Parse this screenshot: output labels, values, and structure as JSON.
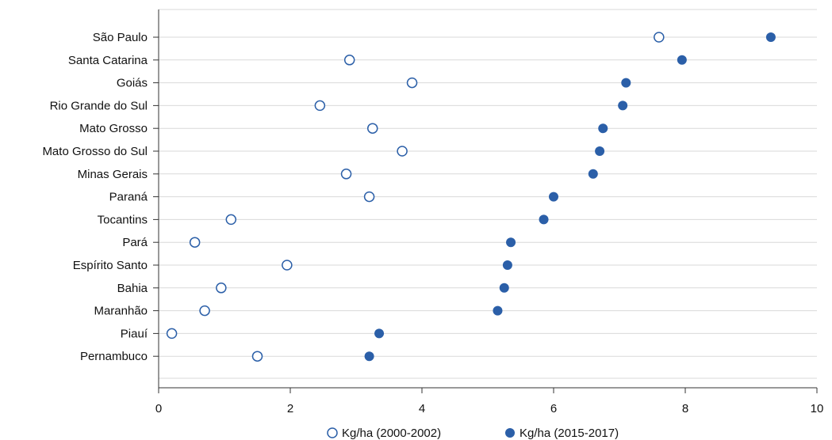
{
  "chart_data": {
    "type": "scatter",
    "title": "",
    "xlabel": "",
    "ylabel": "",
    "xlim": [
      0,
      10
    ],
    "x_ticks": [
      0,
      2,
      4,
      6,
      8,
      10
    ],
    "grid": "horizontal",
    "legend_position": "bottom",
    "categories": [
      "São Paulo",
      "Santa Catarina",
      "Goiás",
      "Rio Grande do Sul",
      "Mato Grosso",
      "Mato Grosso do Sul",
      "Minas Gerais",
      "Paraná",
      "Tocantins",
      "Pará",
      "Espírito Santo",
      "Bahia",
      "Maranhão",
      "Piauí",
      "Pernambuco"
    ],
    "series": [
      {
        "name": "Kg/ha (2000-2002)",
        "marker": "open-circle",
        "color": "#2b5fa8",
        "values": [
          7.6,
          2.9,
          3.85,
          2.45,
          3.25,
          3.7,
          2.85,
          3.2,
          1.1,
          0.55,
          1.95,
          0.95,
          0.7,
          0.2,
          1.5
        ]
      },
      {
        "name": "Kg/ha (2015-2017)",
        "marker": "filled-circle",
        "color": "#2b5fa8",
        "values": [
          9.3,
          7.95,
          7.1,
          7.05,
          6.75,
          6.7,
          6.6,
          6.0,
          5.85,
          5.35,
          5.3,
          5.25,
          5.15,
          3.35,
          3.2
        ]
      }
    ]
  }
}
